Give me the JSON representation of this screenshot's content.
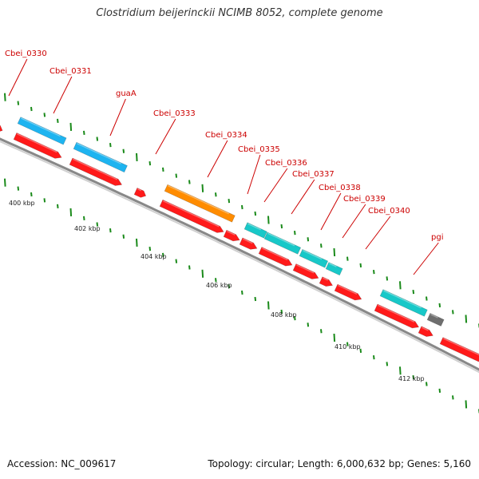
{
  "title": "Clostridium beijerinckii NCIMB 8052, complete genome",
  "accession_text": "Accession: NC_009617",
  "summary_text": "Topology: circular; Length: 6,000,632 bp; Genes: 5,160",
  "colors": {
    "forward_gene": "#ff1a1a",
    "rna_gene": "#ff8c00",
    "blue_gene": "#1eb4f0",
    "cyan_gene": "#18c8c8",
    "grey_gene": "#6e6e6e",
    "label_text": "#cc0000",
    "tick_green": "#1a8a1a",
    "backbone": "#777777"
  },
  "coordinate_labels": [
    "400 kbp",
    "402 kbp",
    "404 kbp",
    "406 kbp",
    "408 kbp",
    "410 kbp",
    "412 kbp"
  ],
  "gene_labels": [
    "Cbei_0330",
    "Cbei_0331",
    "guaA",
    "Cbei_0333",
    "Cbei_0334",
    "Cbei_0335",
    "Cbei_0336",
    "Cbei_0337",
    "Cbei_0338",
    "Cbei_0339",
    "Cbei_0340",
    "pgi"
  ],
  "forward_genes": [
    {
      "color": "forward_gene"
    },
    {
      "color": "forward_gene"
    },
    {
      "color": "forward_gene"
    },
    {
      "color": "forward_gene"
    },
    {
      "color": "forward_gene"
    },
    {
      "color": "forward_gene"
    },
    {
      "color": "forward_gene"
    },
    {
      "color": "forward_gene"
    },
    {
      "color": "forward_gene"
    },
    {
      "color": "forward_gene"
    },
    {
      "color": "forward_gene"
    },
    {
      "color": "forward_gene"
    },
    {
      "color": "forward_gene"
    },
    {
      "color": "forward_gene"
    }
  ],
  "upper_genes": [
    {
      "color": "blue_gene"
    },
    {
      "color": "blue_gene"
    },
    {
      "color": "rna_gene"
    },
    {
      "color": "cyan_gene"
    },
    {
      "color": "cyan_gene"
    },
    {
      "color": "cyan_gene"
    },
    {
      "color": "cyan_gene"
    },
    {
      "color": "cyan_gene"
    },
    {
      "color": "grey_gene"
    }
  ]
}
